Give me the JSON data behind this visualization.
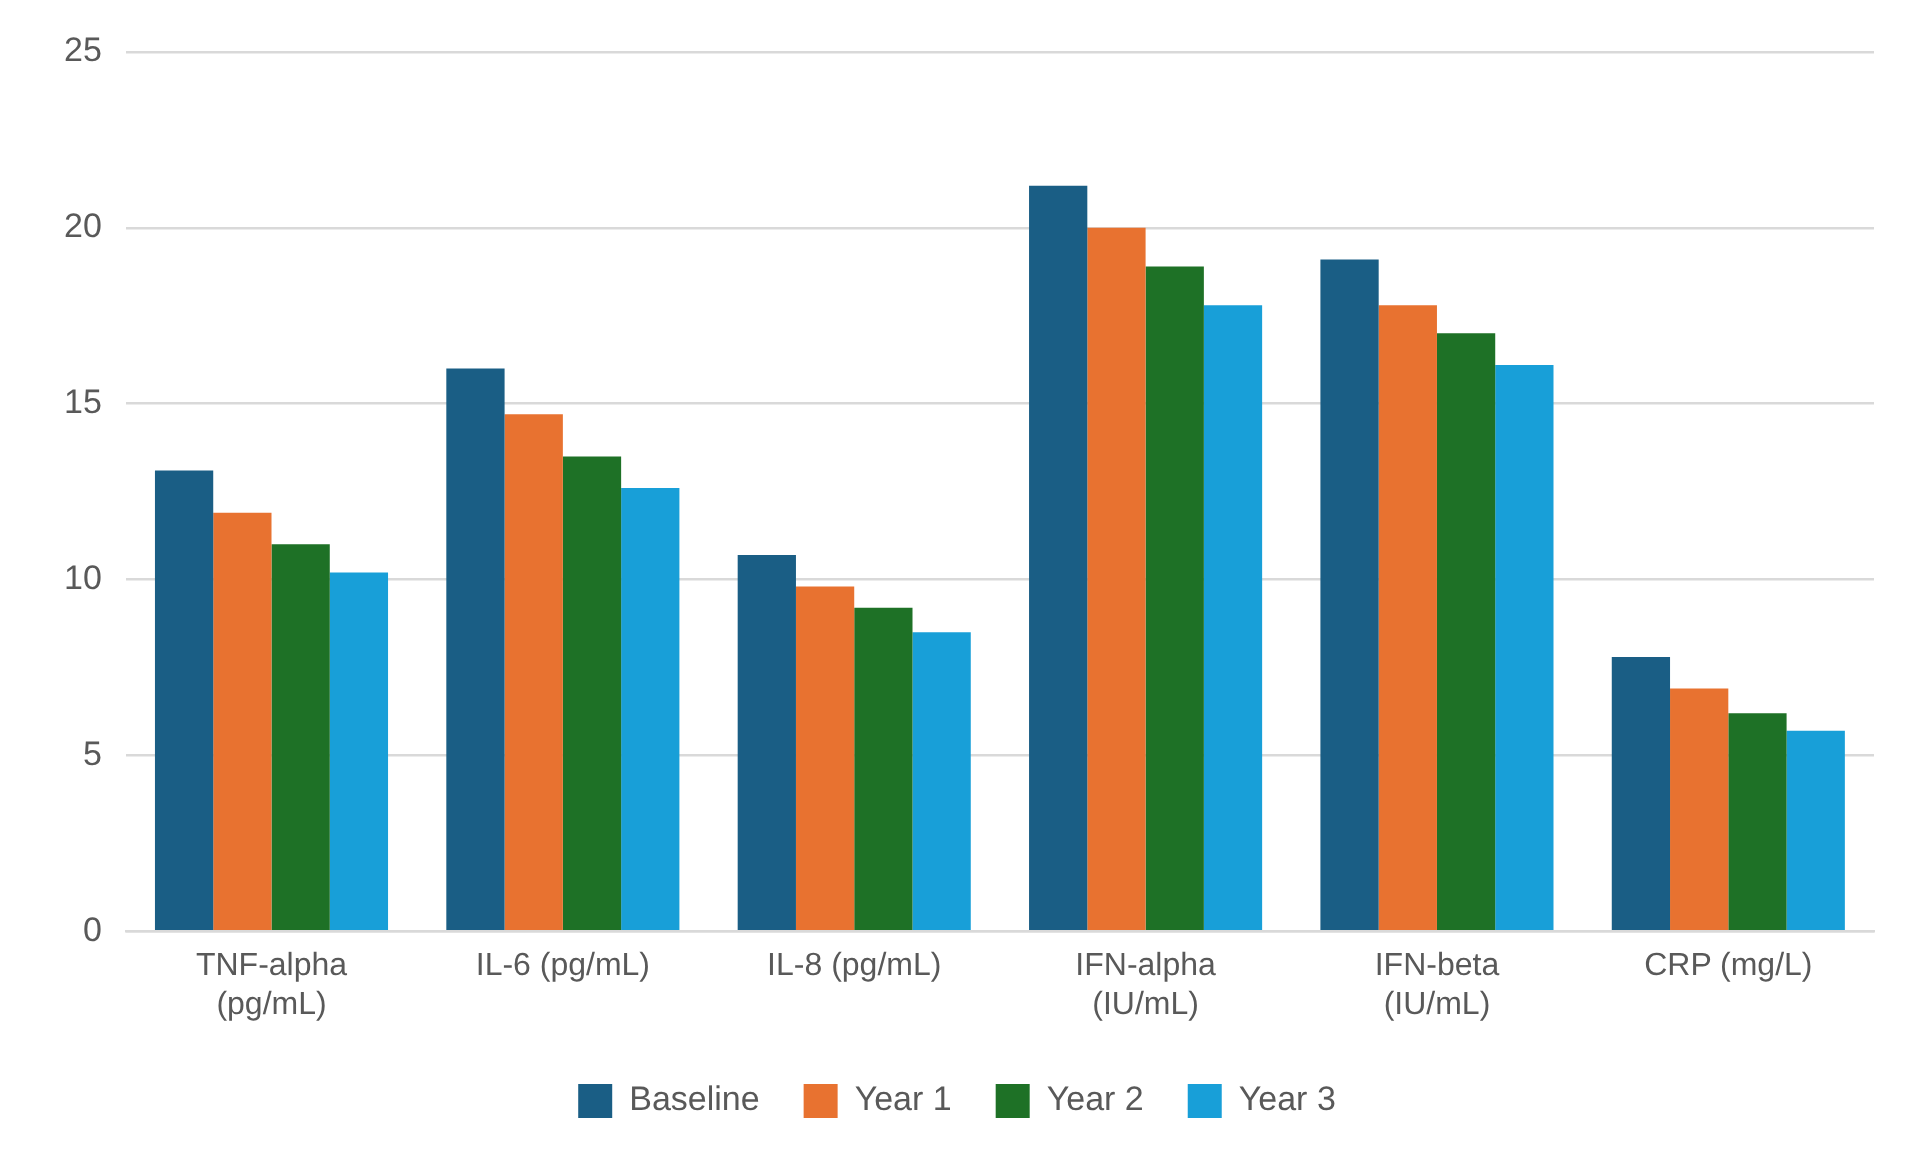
{
  "chart_data": {
    "type": "bar",
    "categories": [
      "TNF-alpha (pg/mL)",
      "IL-6 (pg/mL)",
      "IL-8 (pg/mL)",
      "IFN-alpha (IU/mL)",
      "IFN-beta (IU/mL)",
      "CRP (mg/L)"
    ],
    "series": [
      {
        "name": "Baseline",
        "color": "#1a5e85",
        "values": [
          13.1,
          16.0,
          10.7,
          21.2,
          19.1,
          7.8
        ]
      },
      {
        "name": "Year 1",
        "color": "#e87230",
        "values": [
          11.9,
          14.7,
          9.8,
          20.0,
          17.8,
          6.9
        ]
      },
      {
        "name": "Year 2",
        "color": "#1e7126",
        "values": [
          11.0,
          13.5,
          9.2,
          18.9,
          17.0,
          6.2
        ]
      },
      {
        "name": "Year 3",
        "color": "#189fd8",
        "values": [
          10.2,
          12.6,
          8.5,
          17.8,
          16.1,
          5.7
        ]
      }
    ],
    "ylim": [
      0,
      25
    ],
    "yticks": [
      0,
      5,
      10,
      15,
      20,
      25
    ],
    "grid": "y",
    "legend": "bottom"
  }
}
